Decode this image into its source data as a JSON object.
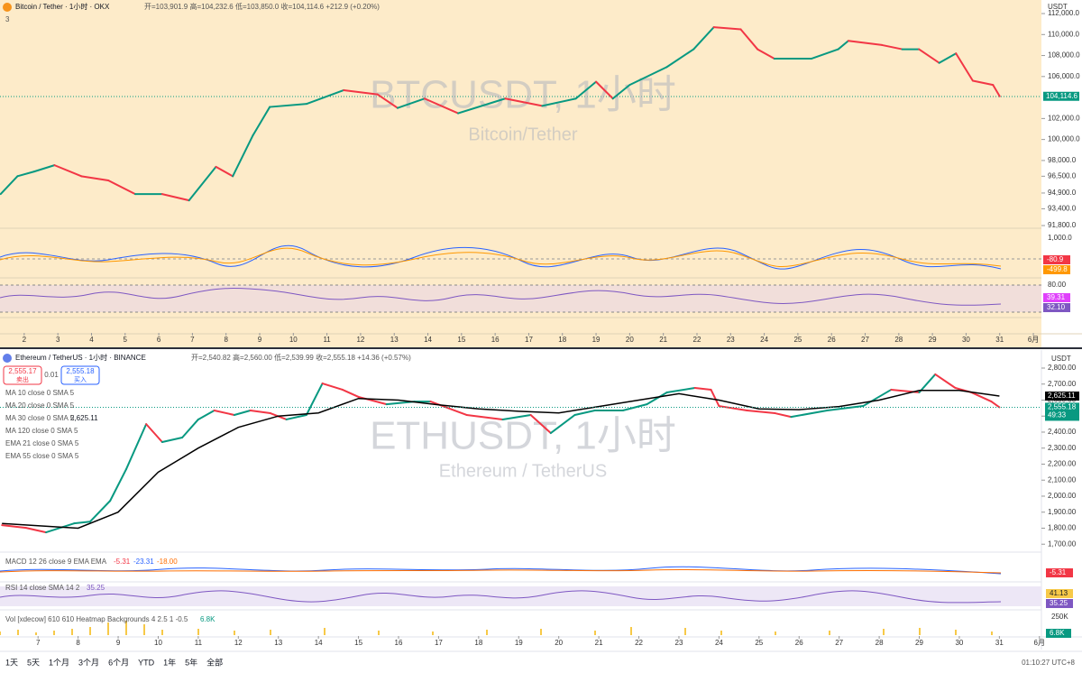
{
  "btc": {
    "title": "Bitcoin / Tether · 1小时 · OKX",
    "ohlc": "开=103,901.9 高=104,232.6 低=103,850.0 收=104,114.6 +212.9 (+0.20%)",
    "collapse": "3",
    "currency": "USDT",
    "watermark": "BTCUSDT, 1小时",
    "watermark_sub": "Bitcoin/Tether",
    "x": [
      1.3,
      1.8,
      2.3,
      2.9,
      3.7,
      4.5,
      5.3,
      6.1,
      6.9,
      7.7,
      8.2,
      8.8,
      9.3,
      10.4,
      11.5,
      12.5,
      13.1,
      13.9,
      14.9,
      16.3,
      17.4,
      18.4,
      19.0,
      19.5,
      20.0,
      21.1,
      21.9,
      22.5,
      23.3,
      23.8,
      24.3,
      25.4,
      26.2,
      26.5,
      27.5,
      28.1,
      28.6,
      29.2,
      29.7,
      30.2,
      30.8,
      31.0
    ],
    "values": [
      94800,
      96500,
      96950,
      97550,
      96500,
      96100,
      94800,
      94800,
      94200,
      97400,
      96500,
      100400,
      103100,
      103400,
      104700,
      104300,
      103000,
      103900,
      102500,
      103900,
      103200,
      103900,
      105500,
      103900,
      105200,
      106900,
      108600,
      110700,
      110500,
      108600,
      107700,
      107700,
      108600,
      109400,
      109000,
      108600,
      108600,
      107300,
      108200,
      105600,
      105200,
      104114.6
    ],
    "xlim": [
      1.28,
      32.24
    ],
    "ylim": [
      91630,
      112260
    ],
    "xticks": [
      2,
      3,
      4,
      5,
      6,
      7,
      8,
      9,
      10,
      11,
      12,
      13,
      14,
      15,
      16,
      17,
      18,
      19,
      20,
      21,
      22,
      23,
      24,
      25,
      26,
      27,
      28,
      29,
      30,
      31,
      {
        "value": 32,
        "label": "6月"
      }
    ],
    "yticks": [
      {
        "value": 112000,
        "label": "112,000.0"
      },
      {
        "value": 110000,
        "label": "110,000.0"
      },
      {
        "value": 108000,
        "label": "108,000.0"
      },
      {
        "value": 106000,
        "label": "106,000.0"
      },
      {
        "value": 102000,
        "label": "102,000.0"
      },
      {
        "value": 100000,
        "label": "100,000.0"
      },
      {
        "value": 98000,
        "label": "98,000.0"
      },
      {
        "value": 96500,
        "label": "96,500.0"
      },
      {
        "value": 94900,
        "label": "94,900.0"
      },
      {
        "value": 93400,
        "label": "93,400.0"
      },
      {
        "value": 91800,
        "label": "91,800.0"
      }
    ],
    "last": {
      "value": 104114.6,
      "label": "104,114.6"
    },
    "osc1": {
      "axis": "1,000.0",
      "tags": [
        "-80.9",
        "-499.8"
      ]
    },
    "osc2": {
      "axis": "80.00",
      "tags": [
        "39.31",
        "32.10"
      ]
    }
  },
  "eth": {
    "title": "Ethereum / TetherUS · 1小时 · BINANCE",
    "ohlc": "开=2,540.82 高=2,560.00 低=2,539.99 收=2,555.18 +14.36 (+0.57%)",
    "currency": "USDT",
    "sell": {
      "price": "2,555.17",
      "label": "卖出"
    },
    "spread": "0.01",
    "buy": {
      "price": "2,555.18",
      "label": "买入"
    },
    "indicators": [
      "MA 10 close 0 SMA 5",
      "MA 20 close 0 SMA 5",
      "MA 30 close 0 SMA 5",
      "MA 120 close 0 SMA 5",
      "EMA 21 close 0 SMA 5",
      "EMA 55 close 0 SMA 5"
    ],
    "ma30_value": "2,625.11",
    "watermark": "ETHUSDT, 1小时",
    "watermark_sub": "Ethereum / TetherUS",
    "x": [
      6.1,
      6.7,
      7.2,
      7.9,
      8.3,
      8.8,
      9.2,
      9.7,
      10.1,
      10.6,
      11.0,
      11.4,
      11.9,
      12.3,
      12.8,
      13.2,
      13.7,
      14.1,
      14.6,
      15.0,
      15.7,
      16.4,
      16.8,
      17.7,
      18.6,
      19.3,
      19.8,
      20.4,
      20.9,
      21.6,
      22.2,
      22.7,
      23.4,
      23.8,
      24.0,
      24.7,
      25.4,
      25.8,
      26.7,
      27.6,
      28.3,
      29.0,
      29.4,
      29.9,
      30.3,
      30.8,
      31.0
    ],
    "values": [
      1819,
      1802,
      1774,
      1830,
      1841,
      1971,
      2168,
      2450,
      2338,
      2366,
      2479,
      2535,
      2507,
      2535,
      2518,
      2479,
      2507,
      2704,
      2665,
      2620,
      2574,
      2591,
      2591,
      2507,
      2479,
      2507,
      2394,
      2507,
      2535,
      2535,
      2574,
      2648,
      2676,
      2665,
      2563,
      2535,
      2518,
      2495,
      2535,
      2563,
      2665,
      2648,
      2761,
      2676,
      2648,
      2591,
      2555.18
    ],
    "ma30": {
      "name": "MA 30 close 0 SMA 5",
      "x": [
        6.1,
        7,
        8,
        9,
        10,
        11,
        12,
        13,
        14,
        15,
        16,
        17,
        18,
        19,
        20,
        21,
        22,
        23,
        24,
        25,
        26,
        27,
        28,
        29,
        30,
        31
      ],
      "values": [
        1830,
        1815,
        1800,
        1900,
        2150,
        2300,
        2430,
        2500,
        2520,
        2610,
        2600,
        2570,
        2545,
        2530,
        2520,
        2560,
        2600,
        2640,
        2600,
        2545,
        2540,
        2560,
        2600,
        2660,
        2660,
        2625.11
      ]
    },
    "xlim": [
      6.05,
      32.05
    ],
    "ylim": [
      1690,
      2845
    ],
    "xticks": [
      7,
      8,
      9,
      10,
      11,
      12,
      13,
      14,
      15,
      16,
      17,
      18,
      19,
      20,
      21,
      22,
      23,
      24,
      25,
      26,
      27,
      28,
      29,
      30,
      31,
      {
        "value": 32,
        "label": "6月"
      }
    ],
    "yticks": [
      {
        "value": 2800,
        "label": "2,800.00"
      },
      {
        "value": 2700,
        "label": "2,700.00"
      },
      {
        "value": 2600,
        "label": "2,600.00"
      },
      {
        "value": 2500,
        "label": "2,500.00"
      },
      {
        "value": 2400,
        "label": "2,400.00"
      },
      {
        "value": 2300,
        "label": "2,300.00"
      },
      {
        "value": 2200,
        "label": "2,200.00"
      },
      {
        "value": 2100,
        "label": "2,100.00"
      },
      {
        "value": 2000,
        "label": "2,000.00"
      },
      {
        "value": 1900,
        "label": "1,900.00"
      },
      {
        "value": 1800,
        "label": "1,800.00"
      },
      {
        "value": 1700,
        "label": "1,700.00"
      }
    ],
    "ma30_tag": {
      "value": 2625.11,
      "label": "2,625.11"
    },
    "last": {
      "value": 2555.18,
      "label": "2,555.18"
    },
    "countdown": "49:33",
    "macd": {
      "label": "MACD 12 26 close 9 EMA EMA",
      "values": [
        "-5.31",
        "-23.31",
        "-18.00"
      ],
      "tag": "-5.31"
    },
    "rsi": {
      "label": "RSI 14 close SMA 14 2",
      "value": "35.25",
      "tags": [
        "41.13",
        "35.25"
      ]
    },
    "vol": {
      "label": "Vol [xdecow] 610 610 Heatmap Backgrounds 4 2.5 1 -0.5",
      "value": "6.8K",
      "axis": "250K",
      "tag": "6.8K"
    }
  },
  "toolbar": {
    "ranges": [
      "1天",
      "5天",
      "1个月",
      "3个月",
      "6个月",
      "YTD",
      "1年",
      "5年",
      "全部"
    ],
    "clock": "01:10:27 UTC+8"
  }
}
